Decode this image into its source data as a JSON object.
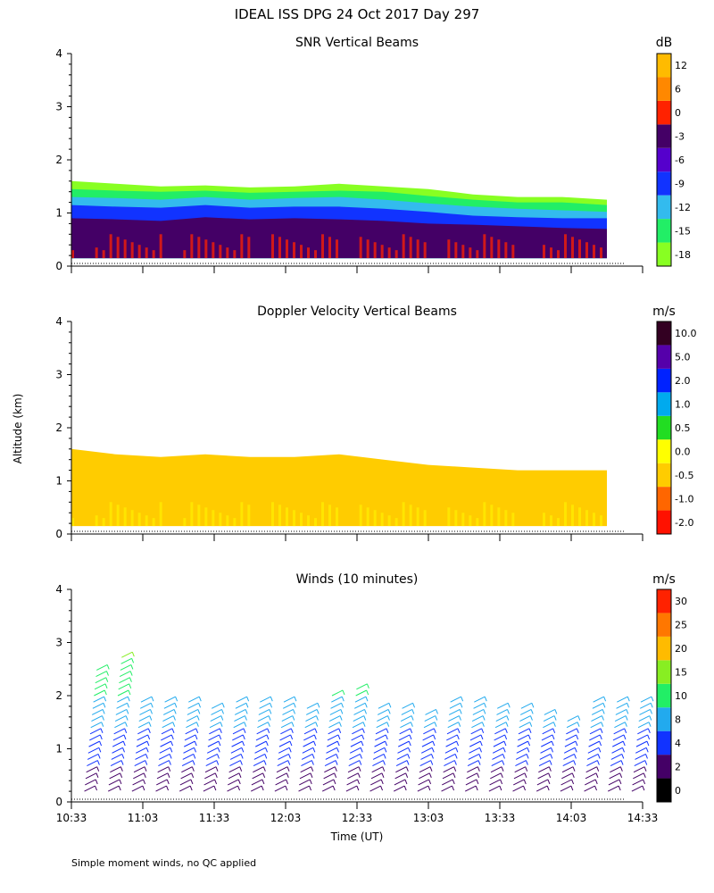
{
  "title": "IDEAL ISS DPG  24 Oct 2017 Day 297",
  "footnote": "Simple moment winds, no QC applied",
  "ylabel": "Altitude (km)",
  "xlabel": "Time (UT)",
  "chart_data": [
    {
      "type": "heatmap",
      "title": "SNR Vertical Beams",
      "ylim": [
        0,
        4
      ],
      "yticks": [
        "0",
        "1",
        "2",
        "3",
        "4"
      ],
      "xlim": [
        "10:33",
        "14:33"
      ],
      "colorbar": {
        "unit": "dB",
        "colors": [
          "#88ff22",
          "#22ee66",
          "#33bbee",
          "#1133ff",
          "#5500cc",
          "#440066",
          "#ff2200",
          "#ff8800",
          "#ffbb00"
        ],
        "labels": [
          "-18",
          "-15",
          "-12",
          "-9",
          "-6",
          "-3",
          "0",
          "6",
          "12"
        ]
      },
      "layers": [
        {
          "name": "SNR -18 dB edge",
          "color": "#88ff22",
          "top_km": [
            1.6,
            1.55,
            1.5,
            1.52,
            1.48,
            1.5,
            1.55,
            1.5,
            1.45,
            1.35,
            1.3,
            1.3,
            1.25
          ]
        },
        {
          "name": "SNR -15 dB",
          "color": "#22ee66",
          "top_km": [
            1.45,
            1.42,
            1.4,
            1.42,
            1.38,
            1.4,
            1.42,
            1.4,
            1.32,
            1.25,
            1.2,
            1.2,
            1.15
          ]
        },
        {
          "name": "SNR -12 dB",
          "color": "#33bbee",
          "top_km": [
            1.3,
            1.28,
            1.25,
            1.3,
            1.25,
            1.28,
            1.3,
            1.25,
            1.18,
            1.12,
            1.08,
            1.05,
            1.02
          ]
        },
        {
          "name": "SNR -9 dB",
          "color": "#1133ff",
          "top_km": [
            1.15,
            1.12,
            1.1,
            1.15,
            1.1,
            1.12,
            1.12,
            1.08,
            1.02,
            0.95,
            0.92,
            0.9,
            0.9
          ]
        },
        {
          "name": "SNR -3 dB",
          "color": "#440066",
          "top_km": [
            0.9,
            0.88,
            0.85,
            0.92,
            0.88,
            0.9,
            0.88,
            0.85,
            0.8,
            0.78,
            0.75,
            0.72,
            0.7
          ]
        }
      ]
    },
    {
      "type": "heatmap",
      "title": "Doppler Velocity Vertical Beams",
      "ylim": [
        0,
        4
      ],
      "yticks": [
        "0",
        "1",
        "2",
        "3",
        "4"
      ],
      "xlim": [
        "10:33",
        "14:33"
      ],
      "colorbar": {
        "unit": "m/s",
        "colors": [
          "#ff1100",
          "#ff6600",
          "#ffcc00",
          "#ffff00",
          "#22dd22",
          "#00aaee",
          "#0022ff",
          "#5500aa",
          "#330022"
        ],
        "labels": [
          "-2.0",
          "-1.0",
          "-0.5",
          "0.0",
          "0.5",
          "1.0",
          "2.0",
          "5.0",
          "10.0"
        ]
      },
      "layers": [
        {
          "name": "Vertical velocity -0.5 to 0 m/s",
          "color": "#ffcc00",
          "top_km": [
            1.6,
            1.5,
            1.45,
            1.5,
            1.45,
            1.45,
            1.5,
            1.4,
            1.3,
            1.25,
            1.2,
            1.2,
            1.2
          ]
        }
      ]
    },
    {
      "type": "wind-barbs",
      "title": "Winds (10 minutes)",
      "ylim": [
        0,
        4
      ],
      "yticks": [
        "0",
        "1",
        "2",
        "3",
        "4"
      ],
      "xticks": [
        "10:33",
        "11:03",
        "11:33",
        "12:03",
        "12:33",
        "13:03",
        "13:33",
        "14:03",
        "14:33"
      ],
      "colorbar": {
        "unit": "m/s",
        "colors": [
          "#000000",
          "#440066",
          "#1133ff",
          "#22aaee",
          "#22ee66",
          "#88ee22",
          "#ffbb00",
          "#ff7700",
          "#ff2200"
        ],
        "labels": [
          "0",
          "2",
          "4",
          "8",
          "10",
          "15",
          "20",
          "25",
          "30"
        ]
      },
      "profile_times_min": [
        5,
        15,
        25,
        35,
        45,
        55,
        65,
        75,
        85,
        95,
        105,
        115,
        125,
        135,
        145,
        155,
        165,
        175,
        185,
        195,
        205,
        215,
        225,
        235
      ],
      "profile_top_km": [
        2.5,
        2.8,
        1.9,
        2.0,
        1.9,
        1.8,
        1.9,
        2.0,
        1.9,
        1.8,
        2.1,
        2.2,
        1.8,
        1.8,
        1.7,
        1.9,
        2.0,
        1.8,
        1.8,
        1.7,
        1.6,
        1.9,
        2.0,
        2.0
      ]
    }
  ]
}
